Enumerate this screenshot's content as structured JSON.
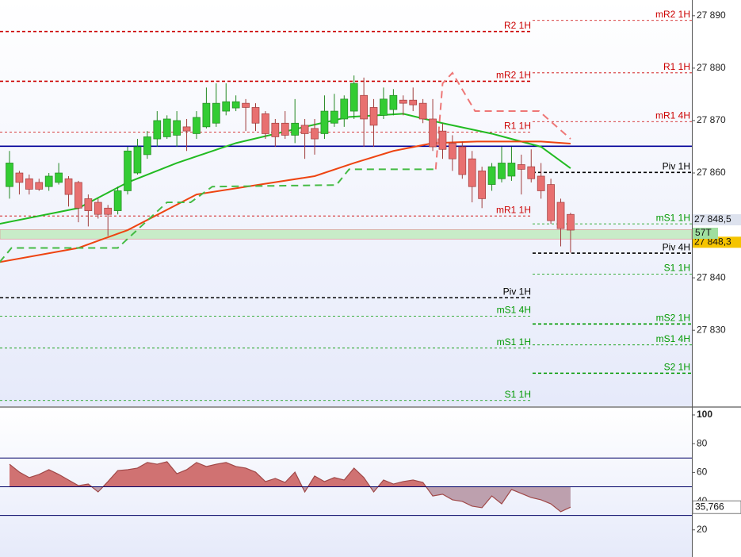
{
  "chart_data": [
    {
      "type": "candlestick",
      "ylim": [
        27815.5,
        27893
      ],
      "yticks": [
        {
          "value": 27890,
          "label": "27 890"
        },
        {
          "value": 27880,
          "label": "27 880"
        },
        {
          "value": 27870,
          "label": "27 870"
        },
        {
          "value": 27860,
          "label": "27 860"
        },
        {
          "value": 27840,
          "label": "27 840"
        },
        {
          "value": 27830,
          "label": "27 830"
        }
      ],
      "up_color": "#33cc33",
      "down_color": "#e87070",
      "open": [
        27857.4,
        27860.0,
        27858.9,
        27858.2,
        27857.4,
        27858.2,
        27858.9,
        27858.2,
        27855.1,
        27854.4,
        27853.3,
        27852.8,
        27856.6,
        27860.0,
        27863.5,
        27866.5,
        27866.9,
        27867.2,
        27868.8,
        27867.5,
        27868.8,
        27869.5,
        27871.8,
        27872.4,
        27873.3,
        27872.5,
        27871.3,
        27869.5,
        27869.5,
        27867.2,
        27869.1,
        27868.5,
        27867.5,
        27869.5,
        27870.3,
        27871.8,
        27874.8,
        27872.5,
        27871.0,
        27872.1,
        27873.9,
        27873.9,
        27873.3,
        27870.3,
        27868.0,
        27865.7,
        27865.0,
        27862.7,
        27860.4,
        27857.8,
        27858.9,
        27859.4,
        27861.6,
        27861.2,
        27859.4,
        27857.8,
        27854.4,
        27852.1
      ],
      "high": [
        27864.2,
        27860.4,
        27859.7,
        27858.9,
        27860.0,
        27861.9,
        27859.4,
        27858.5,
        27855.9,
        27855.1,
        27853.9,
        27857.4,
        27865.0,
        27866.5,
        27868.0,
        27871.8,
        27871.0,
        27871.8,
        27870.3,
        27871.8,
        27876.3,
        27877.1,
        27877.1,
        27874.8,
        27874.1,
        27873.3,
        27871.8,
        27870.3,
        27871.8,
        27874.1,
        27870.3,
        27870.3,
        27874.8,
        27875.1,
        27874.8,
        27878.6,
        27878.2,
        27874.1,
        27876.3,
        27876.0,
        27874.8,
        27876.3,
        27874.1,
        27874.1,
        27869.5,
        27867.2,
        27866.0,
        27864.2,
        27861.2,
        27861.9,
        27865.0,
        27865.0,
        27863.5,
        27864.5,
        27861.9,
        27858.9,
        27855.1,
        27852.4
      ],
      "low": [
        27855.1,
        27855.9,
        27855.9,
        27856.6,
        27856.6,
        27857.8,
        27853.6,
        27850.6,
        27849.8,
        27851.3,
        27848.0,
        27852.1,
        27855.9,
        27859.7,
        27862.7,
        27865.0,
        27866.5,
        27865.0,
        27864.2,
        27866.5,
        27868.5,
        27868.8,
        27871.0,
        27871.8,
        27868.0,
        27868.0,
        27866.5,
        27865.0,
        27866.5,
        27865.7,
        27862.7,
        27863.5,
        27866.5,
        27868.8,
        27868.8,
        27870.3,
        27865.0,
        27865.0,
        27870.3,
        27871.0,
        27871.0,
        27871.8,
        27869.5,
        27864.2,
        27862.7,
        27860.4,
        27858.9,
        27854.4,
        27853.3,
        27856.6,
        27858.2,
        27858.5,
        27855.9,
        27858.2,
        27855.1,
        27850.3,
        27846.0,
        27844.8
      ],
      "close": [
        27861.9,
        27858.2,
        27856.9,
        27856.9,
        27859.4,
        27860.0,
        27855.9,
        27853.3,
        27852.8,
        27852.1,
        27852.1,
        27856.6,
        27864.2,
        27865.0,
        27866.9,
        27870.0,
        27870.3,
        27870.0,
        27868.0,
        27870.6,
        27873.3,
        27873.3,
        27873.6,
        27873.6,
        27872.5,
        27869.5,
        27867.5,
        27866.9,
        27867.2,
        27869.5,
        27867.5,
        27866.5,
        27871.8,
        27871.8,
        27874.1,
        27877.1,
        27870.3,
        27869.1,
        27874.1,
        27874.8,
        27873.3,
        27873.0,
        27870.3,
        27865.0,
        27864.5,
        27862.7,
        27859.7,
        27857.4,
        27855.1,
        27861.2,
        27861.9,
        27861.9,
        27860.7,
        27858.9,
        27856.6,
        27850.9,
        27849.4,
        27849.1
      ],
      "lines": [
        {
          "color": "#22bb22",
          "dashed": false,
          "x": [
            -1,
            7,
            12,
            17,
            23,
            30,
            34.5,
            40,
            44,
            49,
            54,
            57
          ],
          "values": [
            27850.3,
            27853.3,
            27858.2,
            27861.9,
            27865.7,
            27868.8,
            27870.7,
            27871.3,
            27869.5,
            27867.5,
            27865.0,
            27860.9
          ]
        },
        {
          "color": "#ee4411",
          "dashed": false,
          "x": [
            -1,
            7,
            12,
            19,
            25.5,
            31,
            35,
            39,
            43,
            47.5,
            54,
            57
          ],
          "values": [
            27843.0,
            27845.7,
            27849.1,
            27855.9,
            27857.8,
            27859.4,
            27861.9,
            27864.2,
            27865.7,
            27866.0,
            27866.0,
            27865.6
          ]
        },
        {
          "color": "#44bb44",
          "dashed": true,
          "x": [
            -1,
            0.2,
            11,
            16,
            18.4,
            20.6,
            33.2,
            34.5,
            43.3
          ],
          "values": [
            27843.0,
            27845.7,
            27845.7,
            27854.4,
            27854.4,
            27857.4,
            27857.7,
            27860.7,
            27860.7
          ]
        },
        {
          "color": "#ee7777",
          "dashed": true,
          "x": [
            43.3,
            44,
            45,
            47.3,
            53.8,
            57
          ],
          "values": [
            27860.7,
            27877.1,
            27879.1,
            27871.8,
            27871.8,
            27866.5
          ]
        }
      ],
      "zone": {
        "from": 27847.4,
        "to": 27849.2,
        "color": "#c8ecc8"
      },
      "levels": [
        {
          "label": "mR2 1H",
          "price": 27889.1,
          "color": "#cc0000",
          "side": "right",
          "thick": false,
          "dashed": true
        },
        {
          "label": "R2 1H",
          "price": 27887.0,
          "color": "#cc0000",
          "side": "left",
          "thick": true,
          "dashed": true
        },
        {
          "label": "R1 1H",
          "price": 27879.1,
          "color": "#cc0000",
          "side": "right",
          "thick": false,
          "dashed": true
        },
        {
          "label": "mR2 1H",
          "price": 27877.5,
          "color": "#cc0000",
          "side": "left",
          "thick": true,
          "dashed": true
        },
        {
          "label": "mR1 4H",
          "price": 27869.8,
          "color": "#cc0000",
          "side": "right",
          "thick": false,
          "dashed": true
        },
        {
          "label": "R1 1H",
          "price": 27867.8,
          "color": "#cc0000",
          "side": "left",
          "thick": false,
          "dashed": true
        },
        {
          "price": 27865.1,
          "color": "#000099",
          "side": "both",
          "thick": true,
          "dashed": false
        },
        {
          "label": "Piv 1H",
          "price": 27860.1,
          "color": "#000000",
          "side": "right",
          "thick": true,
          "dashed": true
        },
        {
          "label": "mR1 1H",
          "price": 27851.8,
          "color": "#cc0000",
          "side": "left",
          "thick": false,
          "dashed": true
        },
        {
          "label": "mS1 1H",
          "price": 27850.3,
          "color": "#009900",
          "side": "right",
          "thick": false,
          "dashed": true
        },
        {
          "label": "Piv 4H",
          "price": 27844.7,
          "color": "#000000",
          "side": "right",
          "thick": true,
          "dashed": true
        },
        {
          "label": "S1 1H",
          "price": 27840.7,
          "color": "#009900",
          "side": "right",
          "thick": false,
          "dashed": true
        },
        {
          "label": "Piv 1H",
          "price": 27836.2,
          "color": "#000000",
          "side": "left",
          "thick": true,
          "dashed": true
        },
        {
          "label": "mS1 4H",
          "price": 27832.7,
          "color": "#009900",
          "side": "left",
          "thick": false,
          "dashed": true
        },
        {
          "label": "mS2 1H",
          "price": 27831.2,
          "color": "#009900",
          "side": "right",
          "thick": true,
          "dashed": true
        },
        {
          "label": "mS1 4H",
          "price": 27827.2,
          "color": "#009900",
          "side": "right",
          "thick": false,
          "dashed": true
        },
        {
          "label": "mS1 1H",
          "price": 27826.6,
          "color": "#009900",
          "side": "left",
          "thick": false,
          "dashed": true
        },
        {
          "label": "S2 1H",
          "price": 27821.8,
          "color": "#009900",
          "side": "right",
          "thick": true,
          "dashed": true
        },
        {
          "label": "S1 1H",
          "price": 27816.6,
          "color": "#009900",
          "side": "left",
          "thick": false,
          "dashed": true
        }
      ],
      "price_labels": [
        {
          "value": 27848.5,
          "label": "27 848,5",
          "color": "#dde2ee"
        },
        {
          "value": 27848.3,
          "label": "27 848,3",
          "color": "#f5c400"
        }
      ],
      "timer": "57T"
    },
    {
      "type": "line",
      "ylim": [
        1.1,
        104.4
      ],
      "yticks": [
        20,
        40,
        60,
        80,
        100
      ],
      "levels": [
        30,
        50,
        70
      ],
      "level_color": "#000066",
      "color": "#a04848",
      "fill_above": "#d07272",
      "fill_below": "#bda0ae",
      "values": [
        65.7,
        60.2,
        56.4,
        58.6,
        61.9,
        58.6,
        54.7,
        50.8,
        51.9,
        46.4,
        53.6,
        61.3,
        61.9,
        63.0,
        66.9,
        65.7,
        67.4,
        59.1,
        61.9,
        66.9,
        64.1,
        65.7,
        66.9,
        64.1,
        63.0,
        60.2,
        53.6,
        55.8,
        53.0,
        60.2,
        46.4,
        57.5,
        53.6,
        56.4,
        54.7,
        63.0,
        56.4,
        46.4,
        54.7,
        51.9,
        53.6,
        54.7,
        53.0,
        43.6,
        44.8,
        40.9,
        39.8,
        36.5,
        35.4,
        43.6,
        38.1,
        48.1,
        45.3,
        42.5,
        40.9,
        38.1,
        32.6,
        35.8
      ],
      "value_label": {
        "value": 35.766,
        "label": "35,766"
      }
    }
  ]
}
